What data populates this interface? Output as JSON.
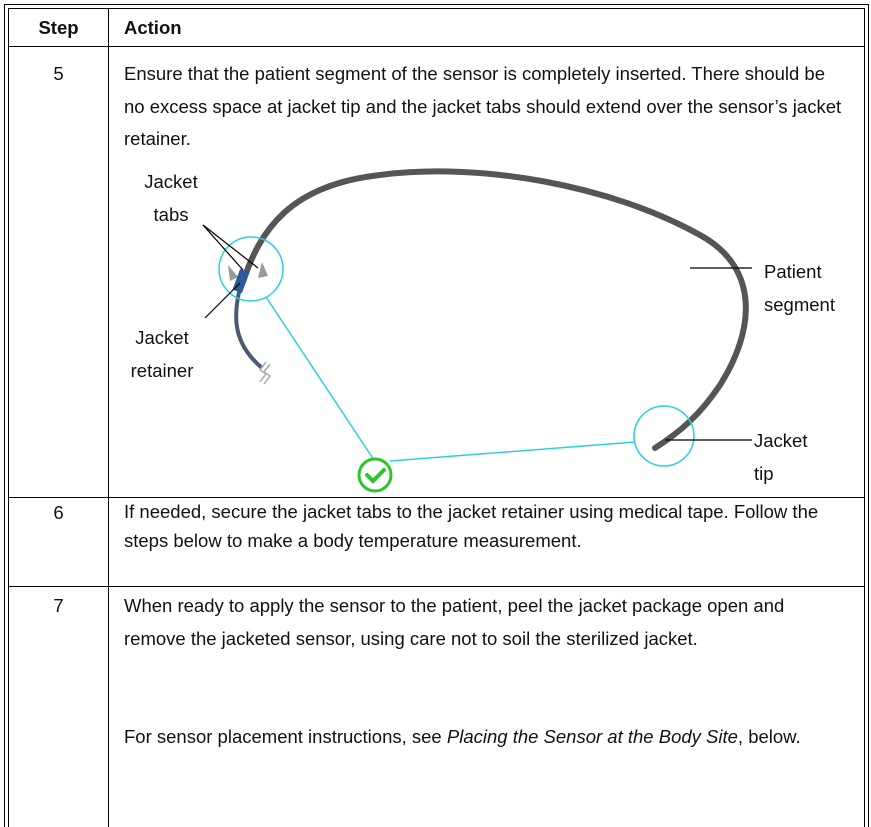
{
  "table": {
    "header": [
      "Step",
      "Action"
    ],
    "rows": [
      {
        "step": "5",
        "text": "Ensure that the patient segment of the sensor is completely inserted. There should be no excess space at jacket tip and the jacket tabs should extend over the sensor’s jacket retainer.",
        "figure": {
          "labels": [
            "Jacket tabs",
            "Patient segment",
            "Jacket retainer",
            "Jacket tip"
          ]
        }
      },
      {
        "step": "6",
        "text": "If needed, secure the jacket tabs to the jacket retainer using medical tape. Follow the steps below to make a body temperature measurement."
      },
      {
        "step": "7",
        "text": "When ready to apply the sensor to the patient, peel the jacket package open and remove the jacketed sensor, using care not to soil the sterilized jacket.",
        "note": [
          "For sensor placement instructions, see ",
          "Placing the Sensor at the Body Site",
          ", below."
        ]
      }
    ]
  }
}
